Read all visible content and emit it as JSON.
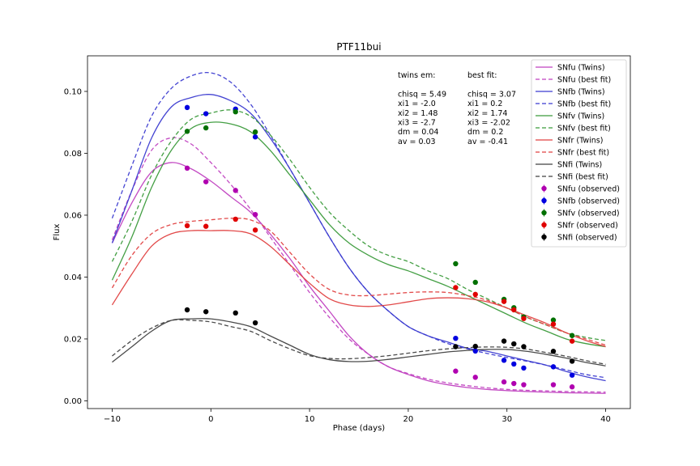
{
  "chart_data": {
    "type": "line",
    "title": "PTF11bui",
    "xlabel": "Phase (days)",
    "ylabel": "Flux",
    "xlim": [
      -12.5,
      42.5
    ],
    "ylim": [
      -0.0025,
      0.1115
    ],
    "xticks": [
      -10,
      0,
      10,
      20,
      30,
      40
    ],
    "xtick_labels": [
      "−10",
      "0",
      "10",
      "20",
      "30",
      "40"
    ],
    "yticks": [
      0.0,
      0.02,
      0.04,
      0.06,
      0.08,
      0.1
    ],
    "ytick_labels": [
      "0.00",
      "0.02",
      "0.04",
      "0.06",
      "0.08",
      "0.10"
    ],
    "grid": false,
    "legend_position": "top-right",
    "annotations": {
      "twins": [
        "twins em:",
        "",
        "chisq = 5.49",
        "xi1 = -2.0",
        "xi2 = 1.48",
        "xi3 = -2.7",
        "dm = 0.04",
        "av = 0.03"
      ],
      "best": [
        "best fit:",
        "",
        "chisq = 3.07",
        "xi1 = 0.2",
        "xi2 = 1.74",
        "xi3 = -2.02",
        "dm = 0.2",
        "av = -0.41"
      ]
    },
    "colors": {
      "u": "#c040c0",
      "b": "#3a3ad0",
      "v": "#3a9a3a",
      "r": "#e04040",
      "i": "#404040",
      "u_obs": "#b000b0",
      "b_obs": "#0000e0",
      "v_obs": "#007000",
      "r_obs": "#e00000",
      "i_obs": "#000000"
    },
    "curve_x": [
      -10,
      -8,
      -6,
      -4,
      -2,
      0,
      2,
      4,
      6,
      8,
      10,
      12,
      14,
      16,
      18,
      20,
      22,
      24,
      26,
      28,
      30,
      32,
      34,
      36,
      38,
      40
    ],
    "series": [
      {
        "name": "SNfu (Twins)",
        "band": "u",
        "style": "solid",
        "y": [
          0.051,
          0.064,
          0.074,
          0.077,
          0.075,
          0.071,
          0.066,
          0.061,
          0.054,
          0.046,
          0.037,
          0.029,
          0.021,
          0.015,
          0.011,
          0.0085,
          0.0065,
          0.0052,
          0.0043,
          0.0037,
          0.0033,
          0.003,
          0.0028,
          0.0026,
          0.0025,
          0.0024
        ]
      },
      {
        "name": "SNfu (best fit)",
        "band": "u",
        "style": "dashed",
        "y": [
          0.052,
          0.068,
          0.081,
          0.085,
          0.083,
          0.077,
          0.07,
          0.062,
          0.053,
          0.044,
          0.035,
          0.027,
          0.02,
          0.015,
          0.011,
          0.0088,
          0.007,
          0.0058,
          0.0049,
          0.0042,
          0.0037,
          0.0034,
          0.0032,
          0.003,
          0.0029,
          0.0028
        ]
      },
      {
        "name": "SNfb (Twins)",
        "band": "b",
        "style": "solid",
        "y": [
          0.051,
          0.068,
          0.085,
          0.095,
          0.098,
          0.099,
          0.097,
          0.093,
          0.085,
          0.075,
          0.064,
          0.053,
          0.043,
          0.035,
          0.029,
          0.024,
          0.021,
          0.019,
          0.017,
          0.016,
          0.0145,
          0.013,
          0.0115,
          0.0095,
          0.0078,
          0.0065
        ]
      },
      {
        "name": "SNfb (best fit)",
        "band": "b",
        "style": "dashed",
        "y": [
          0.059,
          0.076,
          0.092,
          0.101,
          0.105,
          0.106,
          0.103,
          0.096,
          0.086,
          0.075,
          0.064,
          0.053,
          0.043,
          0.035,
          0.029,
          0.024,
          0.021,
          0.0185,
          0.0168,
          0.0153,
          0.014,
          0.0128,
          0.0115,
          0.01,
          0.0085,
          0.0075
        ]
      },
      {
        "name": "SNfv (Twins)",
        "band": "v",
        "style": "solid",
        "y": [
          0.039,
          0.053,
          0.069,
          0.081,
          0.088,
          0.09,
          0.0895,
          0.087,
          0.081,
          0.073,
          0.065,
          0.057,
          0.051,
          0.047,
          0.044,
          0.042,
          0.0395,
          0.037,
          0.034,
          0.031,
          0.028,
          0.025,
          0.0225,
          0.02,
          0.0185,
          0.0175
        ]
      },
      {
        "name": "SNfv (best fit)",
        "band": "v",
        "style": "dashed",
        "y": [
          0.045,
          0.058,
          0.073,
          0.084,
          0.091,
          0.093,
          0.094,
          0.092,
          0.086,
          0.078,
          0.069,
          0.061,
          0.055,
          0.05,
          0.047,
          0.045,
          0.042,
          0.0395,
          0.036,
          0.033,
          0.03,
          0.027,
          0.0245,
          0.022,
          0.0205,
          0.0195
        ]
      },
      {
        "name": "SNfr (Twins)",
        "band": "r",
        "style": "solid",
        "y": [
          0.031,
          0.041,
          0.05,
          0.054,
          0.055,
          0.055,
          0.055,
          0.054,
          0.05,
          0.044,
          0.038,
          0.033,
          0.031,
          0.0305,
          0.031,
          0.032,
          0.033,
          0.0333,
          0.033,
          0.032,
          0.03,
          0.0275,
          0.025,
          0.022,
          0.0195,
          0.0175
        ]
      },
      {
        "name": "SNfr (best fit)",
        "band": "r",
        "style": "dashed",
        "y": [
          0.0365,
          0.047,
          0.054,
          0.057,
          0.058,
          0.0585,
          0.059,
          0.0585,
          0.055,
          0.048,
          0.041,
          0.036,
          0.0342,
          0.034,
          0.0345,
          0.035,
          0.0352,
          0.035,
          0.034,
          0.0325,
          0.03,
          0.027,
          0.0245,
          0.022,
          0.02,
          0.018
        ]
      },
      {
        "name": "SNfi (Twins)",
        "band": "i",
        "style": "solid",
        "y": [
          0.0125,
          0.0175,
          0.0225,
          0.026,
          0.0265,
          0.0265,
          0.0255,
          0.024,
          0.021,
          0.018,
          0.015,
          0.0133,
          0.0127,
          0.0128,
          0.0134,
          0.0142,
          0.015,
          0.0158,
          0.0163,
          0.0166,
          0.0166,
          0.016,
          0.015,
          0.0138,
          0.0124,
          0.0113
        ]
      },
      {
        "name": "SNfi (best fit)",
        "band": "i",
        "style": "dashed",
        "y": [
          0.0145,
          0.0195,
          0.0235,
          0.026,
          0.026,
          0.0255,
          0.024,
          0.0225,
          0.0195,
          0.0168,
          0.0146,
          0.0137,
          0.0136,
          0.014,
          0.0146,
          0.0154,
          0.0162,
          0.0168,
          0.0172,
          0.0174,
          0.0173,
          0.0167,
          0.0156,
          0.0144,
          0.013,
          0.0118
        ]
      }
    ],
    "observed": [
      {
        "name": "SNfu (observed)",
        "band": "u_obs",
        "x": [
          -2.4,
          -0.5,
          2.5,
          4.5,
          24.8,
          26.8,
          29.7,
          30.7,
          31.7,
          34.7,
          36.6
        ],
        "y": [
          0.0752,
          0.0708,
          0.068,
          0.0602,
          0.0096,
          0.0076,
          0.0061,
          0.0056,
          0.0052,
          0.0052,
          0.0045
        ]
      },
      {
        "name": "SNfb (observed)",
        "band": "b_obs",
        "x": [
          -2.4,
          -0.5,
          2.5,
          4.5,
          24.8,
          26.8,
          29.7,
          30.7,
          31.7,
          34.7,
          36.6
        ],
        "y": [
          0.0948,
          0.0928,
          0.0943,
          0.0853,
          0.0202,
          0.0161,
          0.0131,
          0.0119,
          0.0106,
          0.011,
          0.0083
        ]
      },
      {
        "name": "SNfv (observed)",
        "band": "v_obs",
        "x": [
          -2.4,
          -0.5,
          2.5,
          4.5,
          24.8,
          26.8,
          29.7,
          30.7,
          31.7,
          34.7,
          36.6
        ],
        "y": [
          0.0871,
          0.0882,
          0.0934,
          0.0869,
          0.0443,
          0.0383,
          0.0328,
          0.0301,
          0.0271,
          0.0261,
          0.0211
        ]
      },
      {
        "name": "SNfr (observed)",
        "band": "r_obs",
        "x": [
          -2.4,
          -0.5,
          2.5,
          4.5,
          24.8,
          26.8,
          29.7,
          30.7,
          31.7,
          34.7,
          36.6
        ],
        "y": [
          0.0566,
          0.0564,
          0.0587,
          0.0552,
          0.0366,
          0.0344,
          0.0321,
          0.0294,
          0.0266,
          0.0248,
          0.0193
        ]
      },
      {
        "name": "SNfi (observed)",
        "band": "i_obs",
        "x": [
          -2.4,
          -0.5,
          2.5,
          4.5,
          24.8,
          26.8,
          29.7,
          30.7,
          31.7,
          34.7,
          36.6
        ],
        "y": [
          0.0294,
          0.0288,
          0.0284,
          0.0252,
          0.0175,
          0.0176,
          0.0193,
          0.0184,
          0.0175,
          0.016,
          0.0128
        ]
      }
    ]
  }
}
